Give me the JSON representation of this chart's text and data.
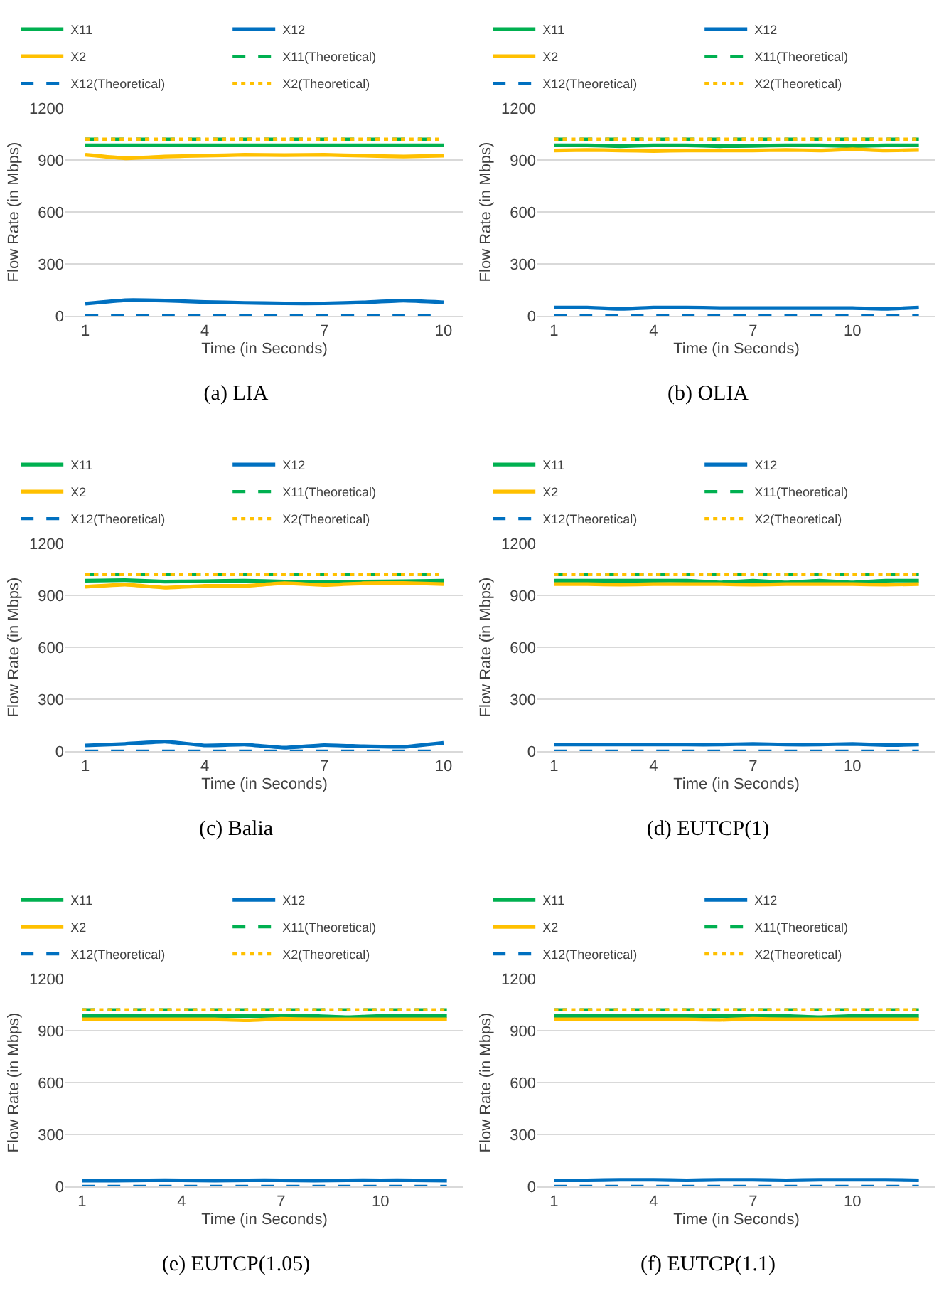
{
  "chart_data": [
    {
      "type": "line",
      "title": "(a) LIA",
      "xlabel": "Time (in Seconds)",
      "ylabel": "Flow Rate (in Mbps)",
      "x": [
        1,
        2,
        3,
        4,
        5,
        6,
        7,
        8,
        9,
        10
      ],
      "xlim": [
        0.5,
        10.5
      ],
      "xticks": [
        1,
        4,
        7,
        10
      ],
      "ylim": [
        0,
        1200
      ],
      "yticks": [
        0,
        300,
        600,
        900,
        1200
      ],
      "grid": "y",
      "legend": "top",
      "marker": "none",
      "series": [
        {
          "name": "X11",
          "color": "#00b050",
          "line_style": "solid",
          "values": [
            985,
            985,
            985,
            985,
            985,
            985,
            985,
            985,
            985,
            985
          ]
        },
        {
          "name": "X12",
          "color": "#0070c0",
          "line_style": "solid",
          "values": [
            70,
            90,
            88,
            80,
            75,
            72,
            72,
            78,
            88,
            78
          ]
        },
        {
          "name": "X2",
          "color": "#ffc000",
          "line_style": "solid",
          "values": [
            930,
            910,
            920,
            925,
            930,
            928,
            930,
            925,
            920,
            925
          ]
        },
        {
          "name": "X11(Theoretical)",
          "color": "#00b050",
          "line_style": "dashed",
          "values": [
            1020,
            1020,
            1020,
            1020,
            1020,
            1020,
            1020,
            1020,
            1020,
            1020
          ]
        },
        {
          "name": "X12(Theoretical)",
          "color": "#0070c0",
          "line_style": "dashed",
          "values": [
            0,
            0,
            0,
            0,
            0,
            0,
            0,
            0,
            0,
            0
          ]
        },
        {
          "name": "X2(Theoretical)",
          "color": "#ffc000",
          "line_style": "dotted",
          "values": [
            1020,
            1020,
            1020,
            1020,
            1020,
            1020,
            1020,
            1020,
            1020,
            1020
          ]
        }
      ]
    },
    {
      "type": "line",
      "title": "(b) OLIA",
      "xlabel": "Time (in Seconds)",
      "ylabel": "Flow Rate (in Mbps)",
      "x": [
        1,
        2,
        3,
        4,
        5,
        6,
        7,
        8,
        9,
        10,
        11,
        12
      ],
      "xlim": [
        0.5,
        12.5
      ],
      "xticks": [
        1,
        4,
        7,
        10
      ],
      "ylim": [
        0,
        1200
      ],
      "yticks": [
        0,
        300,
        600,
        900,
        1200
      ],
      "grid": "y",
      "legend": "top",
      "marker": "none",
      "series": [
        {
          "name": "X11",
          "color": "#00b050",
          "line_style": "solid",
          "values": [
            985,
            985,
            980,
            985,
            985,
            980,
            982,
            985,
            985,
            980,
            985,
            985
          ]
        },
        {
          "name": "X12",
          "color": "#0070c0",
          "line_style": "solid",
          "values": [
            48,
            48,
            40,
            48,
            48,
            45,
            45,
            45,
            45,
            45,
            40,
            48
          ]
        },
        {
          "name": "X2",
          "color": "#ffc000",
          "line_style": "solid",
          "values": [
            955,
            958,
            955,
            952,
            955,
            955,
            955,
            958,
            955,
            962,
            955,
            958
          ]
        },
        {
          "name": "X11(Theoretical)",
          "color": "#00b050",
          "line_style": "dashed",
          "values": [
            1020,
            1020,
            1020,
            1020,
            1020,
            1020,
            1020,
            1020,
            1020,
            1020,
            1020,
            1020
          ]
        },
        {
          "name": "X12(Theoretical)",
          "color": "#0070c0",
          "line_style": "dashed",
          "values": [
            0,
            0,
            0,
            0,
            0,
            0,
            0,
            0,
            0,
            0,
            0,
            0
          ]
        },
        {
          "name": "X2(Theoretical)",
          "color": "#ffc000",
          "line_style": "dotted",
          "values": [
            1020,
            1020,
            1020,
            1020,
            1020,
            1020,
            1020,
            1020,
            1020,
            1020,
            1020,
            1020
          ]
        }
      ]
    },
    {
      "type": "line",
      "title": "(c) Balia",
      "xlabel": "Time (in Seconds)",
      "ylabel": "Flow Rate (in Mbps)",
      "x": [
        1,
        2,
        3,
        4,
        5,
        6,
        7,
        8,
        9,
        10
      ],
      "xlim": [
        0.5,
        10.5
      ],
      "xticks": [
        1,
        4,
        7,
        10
      ],
      "ylim": [
        0,
        1200
      ],
      "yticks": [
        0,
        300,
        600,
        900,
        1200
      ],
      "grid": "y",
      "legend": "top",
      "marker": "none",
      "series": [
        {
          "name": "X11",
          "color": "#00b050",
          "line_style": "solid",
          "values": [
            985,
            988,
            980,
            982,
            985,
            980,
            980,
            980,
            982,
            985
          ]
        },
        {
          "name": "X12",
          "color": "#0070c0",
          "line_style": "solid",
          "values": [
            33,
            42,
            55,
            33,
            38,
            20,
            35,
            28,
            25,
            48
          ]
        },
        {
          "name": "X2",
          "color": "#ffc000",
          "line_style": "solid",
          "values": [
            950,
            962,
            945,
            955,
            955,
            970,
            960,
            970,
            972,
            965
          ]
        },
        {
          "name": "X11(Theoretical)",
          "color": "#00b050",
          "line_style": "dashed",
          "values": [
            1020,
            1020,
            1020,
            1020,
            1020,
            1020,
            1020,
            1020,
            1020,
            1020
          ]
        },
        {
          "name": "X12(Theoretical)",
          "color": "#0070c0",
          "line_style": "dashed",
          "values": [
            0,
            0,
            0,
            0,
            0,
            0,
            0,
            0,
            0,
            0
          ]
        },
        {
          "name": "X2(Theoretical)",
          "color": "#ffc000",
          "line_style": "dotted",
          "values": [
            1020,
            1020,
            1020,
            1020,
            1020,
            1020,
            1020,
            1020,
            1020,
            1020
          ]
        }
      ]
    },
    {
      "type": "line",
      "title": "(d) EUTCP(1)",
      "xlabel": "Time (in Seconds)",
      "ylabel": "Flow Rate (in Mbps)",
      "x": [
        1,
        2,
        3,
        4,
        5,
        6,
        7,
        8,
        9,
        10,
        11,
        12
      ],
      "xlim": [
        0.5,
        12.5
      ],
      "xticks": [
        1,
        4,
        7,
        10
      ],
      "ylim": [
        0,
        1200
      ],
      "yticks": [
        0,
        300,
        600,
        900,
        1200
      ],
      "grid": "y",
      "legend": "top",
      "marker": "none",
      "series": [
        {
          "name": "X11",
          "color": "#00b050",
          "line_style": "solid",
          "values": [
            985,
            985,
            985,
            985,
            985,
            975,
            985,
            975,
            985,
            975,
            985,
            985
          ]
        },
        {
          "name": "X12",
          "color": "#0070c0",
          "line_style": "solid",
          "values": [
            38,
            38,
            38,
            38,
            38,
            38,
            42,
            38,
            38,
            42,
            35,
            38
          ]
        },
        {
          "name": "X2",
          "color": "#ffc000",
          "line_style": "solid",
          "values": [
            965,
            965,
            962,
            965,
            965,
            965,
            962,
            965,
            965,
            965,
            962,
            965
          ]
        },
        {
          "name": "X11(Theoretical)",
          "color": "#00b050",
          "line_style": "dashed",
          "values": [
            1020,
            1020,
            1020,
            1020,
            1020,
            1020,
            1020,
            1020,
            1020,
            1020,
            1020,
            1020
          ]
        },
        {
          "name": "X12(Theoretical)",
          "color": "#0070c0",
          "line_style": "dashed",
          "values": [
            0,
            0,
            0,
            0,
            0,
            0,
            0,
            0,
            0,
            0,
            0,
            0
          ]
        },
        {
          "name": "X2(Theoretical)",
          "color": "#ffc000",
          "line_style": "dotted",
          "values": [
            1020,
            1020,
            1020,
            1020,
            1020,
            1020,
            1020,
            1020,
            1020,
            1020,
            1020,
            1020
          ]
        }
      ]
    },
    {
      "type": "line",
      "title": "(e) EUTCP(1.05)",
      "xlabel": "Time (in Seconds)",
      "ylabel": "Flow Rate (in Mbps)",
      "x": [
        1,
        2,
        3,
        4,
        5,
        6,
        7,
        8,
        9,
        10,
        11,
        12
      ],
      "xlim": [
        0.5,
        12.5
      ],
      "xticks": [
        1,
        4,
        7,
        10
      ],
      "ylim": [
        0,
        1200
      ],
      "yticks": [
        0,
        300,
        600,
        900,
        1200
      ],
      "grid": "y",
      "legend": "top",
      "marker": "none",
      "series": [
        {
          "name": "X11",
          "color": "#00b050",
          "line_style": "solid",
          "values": [
            985,
            985,
            985,
            985,
            985,
            985,
            985,
            985,
            978,
            985,
            985,
            985
          ]
        },
        {
          "name": "X12",
          "color": "#0070c0",
          "line_style": "solid",
          "values": [
            33,
            33,
            35,
            35,
            33,
            35,
            35,
            33,
            35,
            35,
            35,
            33
          ]
        },
        {
          "name": "X2",
          "color": "#ffc000",
          "line_style": "solid",
          "values": [
            965,
            965,
            965,
            965,
            965,
            960,
            968,
            965,
            965,
            965,
            965,
            965
          ]
        },
        {
          "name": "X11(Theoretical)",
          "color": "#00b050",
          "line_style": "dashed",
          "values": [
            1020,
            1020,
            1020,
            1020,
            1020,
            1020,
            1020,
            1020,
            1020,
            1020,
            1020,
            1020
          ]
        },
        {
          "name": "X12(Theoretical)",
          "color": "#0070c0",
          "line_style": "dashed",
          "values": [
            0,
            0,
            0,
            0,
            0,
            0,
            0,
            0,
            0,
            0,
            0,
            0
          ]
        },
        {
          "name": "X2(Theoretical)",
          "color": "#ffc000",
          "line_style": "dotted",
          "values": [
            1020,
            1020,
            1020,
            1020,
            1020,
            1020,
            1020,
            1020,
            1020,
            1020,
            1020,
            1020
          ]
        }
      ]
    },
    {
      "type": "line",
      "title": "(f) EUTCP(1.1)",
      "xlabel": "Time (in Seconds)",
      "ylabel": "Flow Rate (in Mbps)",
      "x": [
        1,
        2,
        3,
        4,
        5,
        6,
        7,
        8,
        9,
        10,
        11,
        12
      ],
      "xlim": [
        0.5,
        12.5
      ],
      "xticks": [
        1,
        4,
        7,
        10
      ],
      "ylim": [
        0,
        1200
      ],
      "yticks": [
        0,
        300,
        600,
        900,
        1200
      ],
      "grid": "y",
      "legend": "top",
      "marker": "none",
      "series": [
        {
          "name": "X11",
          "color": "#00b050",
          "line_style": "solid",
          "values": [
            985,
            985,
            985,
            985,
            985,
            985,
            985,
            985,
            978,
            985,
            985,
            985
          ]
        },
        {
          "name": "X12",
          "color": "#0070c0",
          "line_style": "solid",
          "values": [
            35,
            35,
            38,
            38,
            35,
            38,
            38,
            35,
            38,
            38,
            38,
            35
          ]
        },
        {
          "name": "X2",
          "color": "#ffc000",
          "line_style": "solid",
          "values": [
            965,
            965,
            965,
            965,
            965,
            962,
            968,
            965,
            965,
            965,
            965,
            965
          ]
        },
        {
          "name": "X11(Theoretical)",
          "color": "#00b050",
          "line_style": "dashed",
          "values": [
            1020,
            1020,
            1020,
            1020,
            1020,
            1020,
            1020,
            1020,
            1020,
            1020,
            1020,
            1020
          ]
        },
        {
          "name": "X12(Theoretical)",
          "color": "#0070c0",
          "line_style": "dashed",
          "values": [
            0,
            0,
            0,
            0,
            0,
            0,
            0,
            0,
            0,
            0,
            0,
            0
          ]
        },
        {
          "name": "X2(Theoretical)",
          "color": "#ffc000",
          "line_style": "dotted",
          "values": [
            1020,
            1020,
            1020,
            1020,
            1020,
            1020,
            1020,
            1020,
            1020,
            1020,
            1020,
            1020
          ]
        }
      ]
    }
  ]
}
